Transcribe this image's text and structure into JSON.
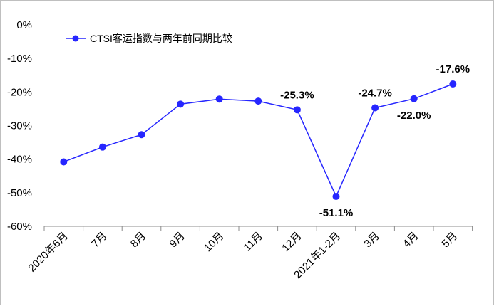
{
  "chart_data": {
    "type": "line",
    "title": "",
    "xlabel": "",
    "ylabel": "",
    "categories": [
      "2020年6月",
      "7月",
      "8月",
      "9月",
      "10月",
      "11月",
      "12月",
      "2021年1-2月",
      "3月",
      "4月",
      "5月"
    ],
    "series": [
      {
        "name": "CTSI客运指数与两年前同期比较",
        "values": [
          -40.8,
          -36.4,
          -32.7,
          -23.6,
          -22.1,
          -22.7,
          -25.3,
          -51.1,
          -24.7,
          -22.0,
          -17.6
        ],
        "color": "#2626ff"
      }
    ],
    "ylim": [
      -60,
      0
    ],
    "yticks": [
      "0%",
      "-10%",
      "-20%",
      "-30%",
      "-40%",
      "-50%",
      "-60%"
    ],
    "data_labels": [
      {
        "index": 6,
        "text": "-25.3%",
        "position": "above"
      },
      {
        "index": 7,
        "text": "-51.1%",
        "position": "below"
      },
      {
        "index": 8,
        "text": "-24.7%",
        "position": "above"
      },
      {
        "index": 9,
        "text": "-22.0%",
        "position": "below"
      },
      {
        "index": 10,
        "text": "-17.6%",
        "position": "above"
      }
    ],
    "grid": false,
    "legend_position": "top-left"
  }
}
